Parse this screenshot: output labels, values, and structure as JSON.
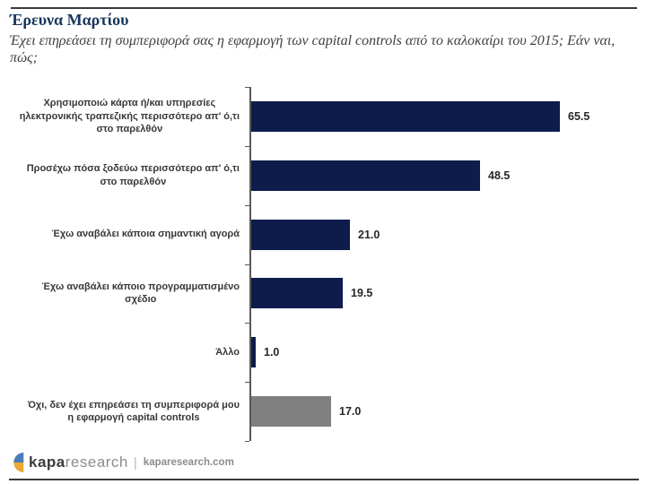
{
  "header": {
    "title": "Έρευνα Μαρτίου",
    "subtitle": "Έχει επηρεάσει τη συμπεριφορά σας η εφαρμογή των capital controls από το καλοκαίρι του 2015; Εάν ναι, πώς;"
  },
  "chart_data": {
    "type": "bar",
    "orientation": "horizontal",
    "title": "Έρευνα Μαρτίου",
    "subtitle": "Έχει επηρεάσει τη συμπεριφορά σας η εφαρμογή των capital controls από το καλοκαίρι του 2015; Εάν ναι, πώς;",
    "categories": [
      "Χρησιμοποιώ κάρτα ή/και υπηρεσίες\nηλεκτρονικής τραπεζικής περισσότερο απ' ό,τι\nστο παρελθόν",
      "Προσέχω πόσα ξοδεύω περισσότερο απ' ό,τι\nστο παρελθόν",
      "Έχω αναβάλει κάποια σημαντική αγορά",
      "Έχω αναβάλει κάποιο προγραμματισμένο\nσχέδιο",
      "Άλλο",
      "Όχι, δεν έχει επηρεάσει τη συμπεριφορά μου\nη εφαρμογή capital controls"
    ],
    "values": [
      65.5,
      48.5,
      21.0,
      19.5,
      1.0,
      17.0
    ],
    "value_labels": [
      "65.5",
      "48.5",
      "21.0",
      "19.5",
      "1.0",
      "17.0"
    ],
    "bar_colors": [
      "#0d1c4b",
      "#0d1c4b",
      "#0d1c4b",
      "#0d1c4b",
      "#0d1c4b",
      "#808080"
    ],
    "xlim": [
      0,
      80
    ],
    "grid": false,
    "legend": false,
    "colors": {
      "primary_bar": "#0d1c4b",
      "neutral_bar": "#808080",
      "axis": "#595959",
      "value_text": "#262626",
      "category_text": "#383838",
      "title_text": "#17365d"
    }
  },
  "footer": {
    "logo_bold": "kapa",
    "logo_light": "research",
    "separator": "|",
    "url": "kaparesearch.com",
    "logo_colors": {
      "blue": "#4a7cb5",
      "yellow": "#eba937"
    }
  }
}
